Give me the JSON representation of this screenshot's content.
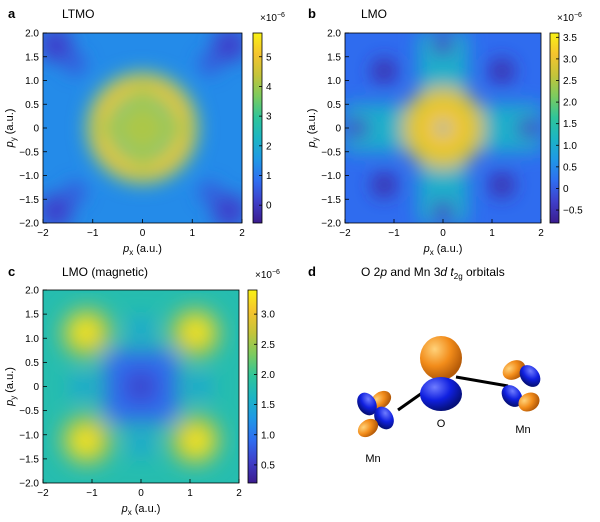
{
  "panels": [
    {
      "letter": "a",
      "title": "LTMO",
      "chart_data": {
        "type": "heatmap",
        "title": "LTMO",
        "xlabel_main": "p",
        "xlabel_sub": "x",
        "xlabel_unit": " (a.u.)",
        "ylabel_main": "p",
        "ylabel_sub": "y",
        "ylabel_unit": " (a.u.)",
        "xlim": [
          -2,
          2
        ],
        "ylim": [
          -2,
          2
        ],
        "x_ticks": [
          -2,
          -1,
          0,
          1,
          2
        ],
        "x_tick_labels": [
          "−2",
          "−1",
          "0",
          "1",
          "2"
        ],
        "y_ticks": [
          2,
          1.5,
          1,
          0.5,
          0,
          -0.5,
          -1,
          -1.5,
          -2
        ],
        "y_tick_labels": [
          "2.0",
          "1.5",
          "1.0",
          "0.5",
          "0",
          "−0.5",
          "−1.0",
          "−1.5",
          "−2.0"
        ],
        "pattern": "ring",
        "colorbar": {
          "min": -0.6,
          "max": 5.8,
          "ticks": [
            0,
            1,
            2,
            3,
            4,
            5
          ],
          "tick_labels": [
            "0",
            "1",
            "2",
            "3",
            "4",
            "5"
          ],
          "exponent_label": "×10"
        }
      }
    },
    {
      "letter": "b",
      "title": "LMO",
      "chart_data": {
        "type": "heatmap",
        "title": "LMO",
        "xlabel_main": "p",
        "xlabel_sub": "x",
        "xlabel_unit": " (a.u.)",
        "ylabel_main": "p",
        "ylabel_sub": "y",
        "ylabel_unit": " (a.u.)",
        "xlim": [
          -2,
          2
        ],
        "ylim": [
          -2,
          2
        ],
        "x_ticks": [
          -2,
          -1,
          0,
          1,
          2
        ],
        "x_tick_labels": [
          "−2",
          "−1",
          "0",
          "1",
          "2"
        ],
        "y_ticks": [
          2,
          1.5,
          1,
          0.5,
          0,
          -0.5,
          -1,
          -1.5,
          -2
        ],
        "y_tick_labels": [
          "2.0",
          "1.5",
          "1.0",
          "0.5",
          "0",
          "−0.5",
          "−1.0",
          "−1.5",
          "−2.0"
        ],
        "pattern": "center",
        "colorbar": {
          "min": -0.8,
          "max": 3.6,
          "ticks": [
            -0.5,
            0,
            0.5,
            1,
            1.5,
            2,
            2.5,
            3,
            3.5
          ],
          "tick_labels": [
            "−0.5",
            "0",
            "0.5",
            "1.0",
            "1.5",
            "2.0",
            "2.5",
            "3.0",
            "3.5"
          ],
          "exponent_label": "×10"
        }
      }
    },
    {
      "letter": "c",
      "title": "LMO (magnetic)",
      "chart_data": {
        "type": "heatmap",
        "title": "LMO (magnetic)",
        "xlabel_main": "p",
        "xlabel_sub": "x",
        "xlabel_unit": " (a.u.)",
        "ylabel_main": "p",
        "ylabel_sub": "y",
        "ylabel_unit": " (a.u.)",
        "xlim": [
          -2,
          2
        ],
        "ylim": [
          -2,
          2
        ],
        "x_ticks": [
          -2,
          -1,
          0,
          1,
          2
        ],
        "x_tick_labels": [
          "−2",
          "−1",
          "0",
          "1",
          "2"
        ],
        "y_ticks": [
          2,
          1.5,
          1,
          0.5,
          0,
          -0.5,
          -1,
          -1.5,
          -2
        ],
        "y_tick_labels": [
          "2.0",
          "1.5",
          "1.0",
          "0.5",
          "0",
          "−0.5",
          "−1.0",
          "−1.5",
          "−2.0"
        ],
        "pattern": "four",
        "colorbar": {
          "min": 0.2,
          "max": 3.4,
          "ticks": [
            0.5,
            1,
            1.5,
            2,
            2.5,
            3
          ],
          "tick_labels": [
            "0.5",
            "1.0",
            "1.5",
            "2.0",
            "2.5",
            "3.0"
          ],
          "exponent_label": "×10"
        }
      }
    }
  ],
  "colorbar_exponent": "−6",
  "panel_d": {
    "letter": "d",
    "title_prefix": "O 2",
    "title_p": "p",
    "title_middle": " and Mn 3",
    "title_d": "d",
    "title_t": " t",
    "title_sub": "2g",
    "title_suffix": " orbitals",
    "labels": {
      "mn_left": "Mn",
      "o": "O",
      "mn_right": "Mn"
    },
    "colors": {
      "orange": "#f28c1a",
      "blue": "#1020e0",
      "bond": "#000000"
    }
  },
  "colormap": [
    "#3b1c8e",
    "#3f3fc9",
    "#2f6df0",
    "#1f98e6",
    "#1cb5c4",
    "#2fc59a",
    "#7ccb5f",
    "#c4c43a",
    "#f5c42e",
    "#f9f115"
  ]
}
